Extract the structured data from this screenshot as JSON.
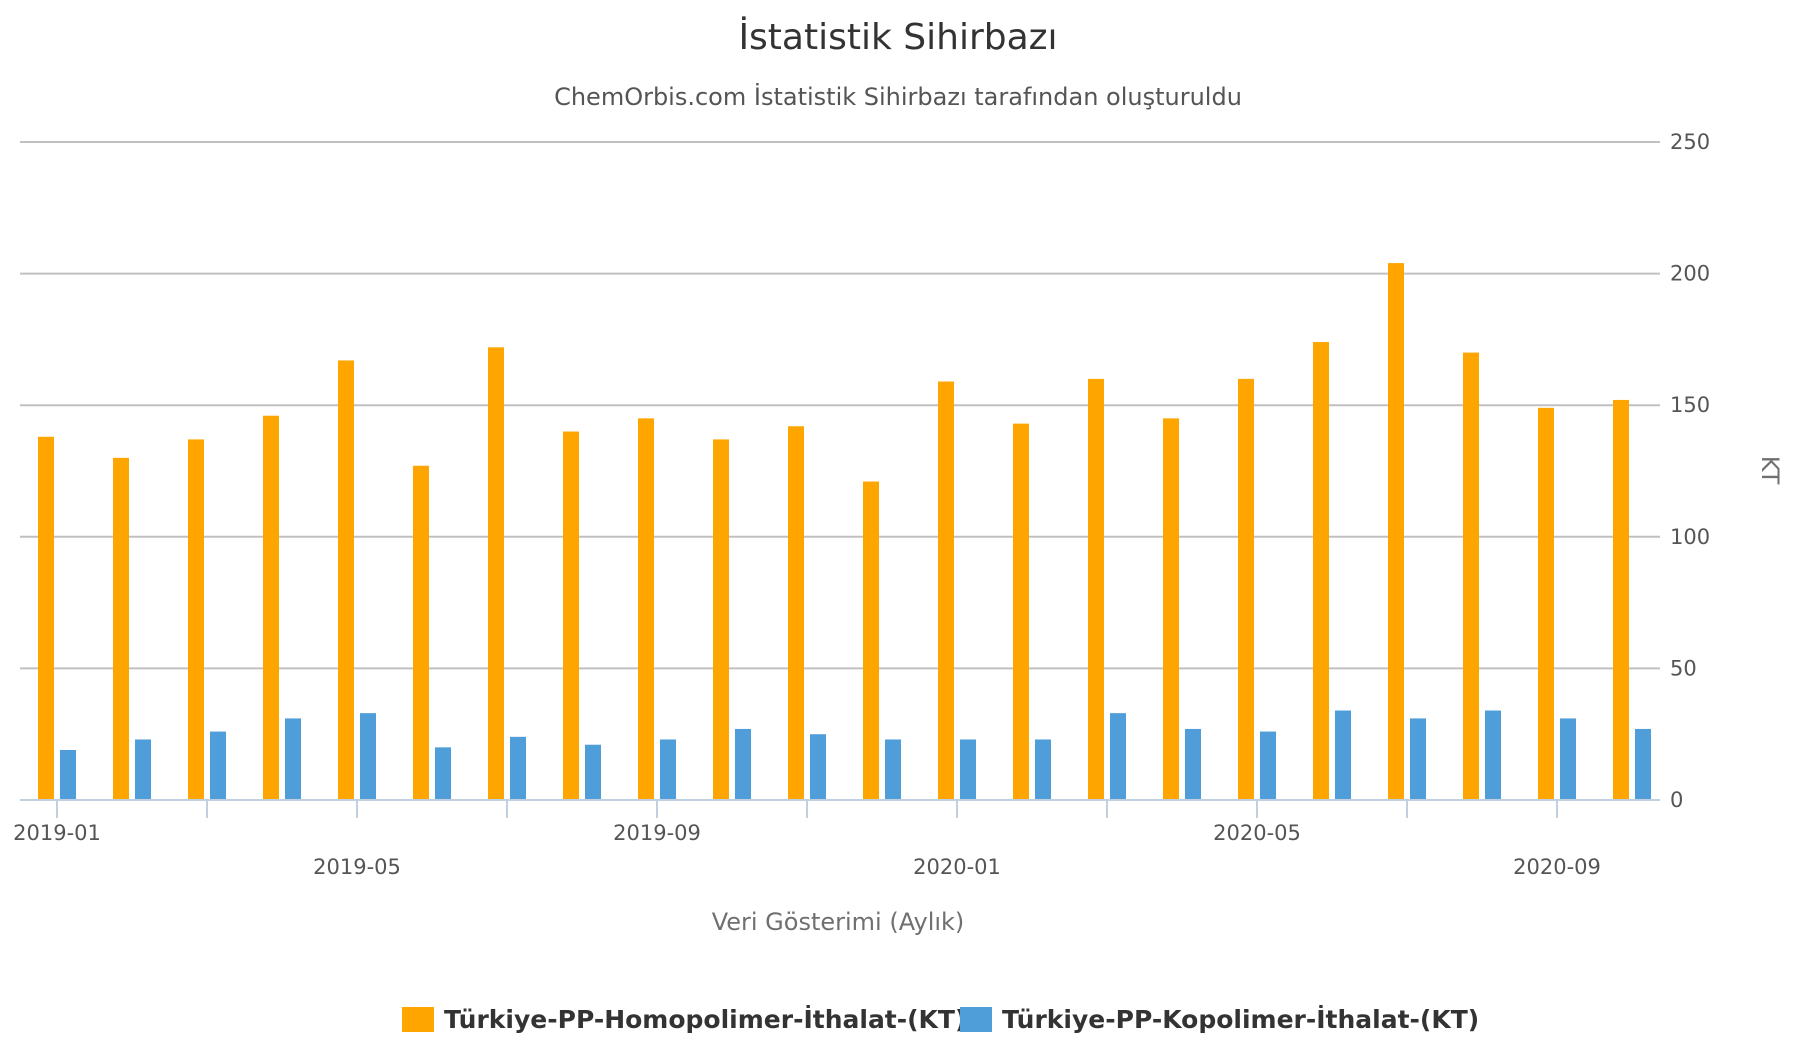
{
  "chart_data": {
    "type": "bar",
    "title": "İstatistik Sihirbazı",
    "subtitle": "ChemOrbis.com İstatistik Sihirbazı tarafından oluşturuldu",
    "xlabel": "Veri Gösterimi (Aylık)",
    "ylabel": "KT",
    "ylim": [
      0,
      250
    ],
    "yticks": [
      0,
      50,
      100,
      150,
      200,
      250
    ],
    "y_axis_position": "right",
    "grid": true,
    "legend_position": "bottom-center",
    "categories": [
      "2019-01",
      "2019-02",
      "2019-03",
      "2019-04",
      "2019-05",
      "2019-06",
      "2019-07",
      "2019-08",
      "2019-09",
      "2019-10",
      "2019-11",
      "2019-12",
      "2020-01",
      "2020-02",
      "2020-03",
      "2020-04",
      "2020-05",
      "2020-06",
      "2020-07",
      "2020-08",
      "2020-09",
      "2020-10"
    ],
    "xtick_labels": [
      {
        "label": "2019-01",
        "row": 1
      },
      {
        "label": "2019-05",
        "row": 2
      },
      {
        "label": "2019-09",
        "row": 1
      },
      {
        "label": "2020-01",
        "row": 2
      },
      {
        "label": "2020-05",
        "row": 1
      },
      {
        "label": "2020-09",
        "row": 2
      }
    ],
    "series": [
      {
        "name": "Türkiye-PP-Homopolimer-İthalat-(KT)",
        "color": "#FFA500",
        "values": [
          138,
          130,
          137,
          146,
          167,
          127,
          172,
          140,
          145,
          137,
          142,
          121,
          159,
          143,
          160,
          145,
          160,
          174,
          204,
          170,
          149,
          152
        ]
      },
      {
        "name": "Türkiye-PP-Kopolimer-İthalat-(KT)",
        "color": "#4F9ED9",
        "values": [
          19,
          23,
          26,
          31,
          33,
          20,
          24,
          21,
          23,
          27,
          25,
          23,
          23,
          23,
          33,
          27,
          26,
          34,
          31,
          34,
          31,
          27
        ]
      }
    ]
  }
}
